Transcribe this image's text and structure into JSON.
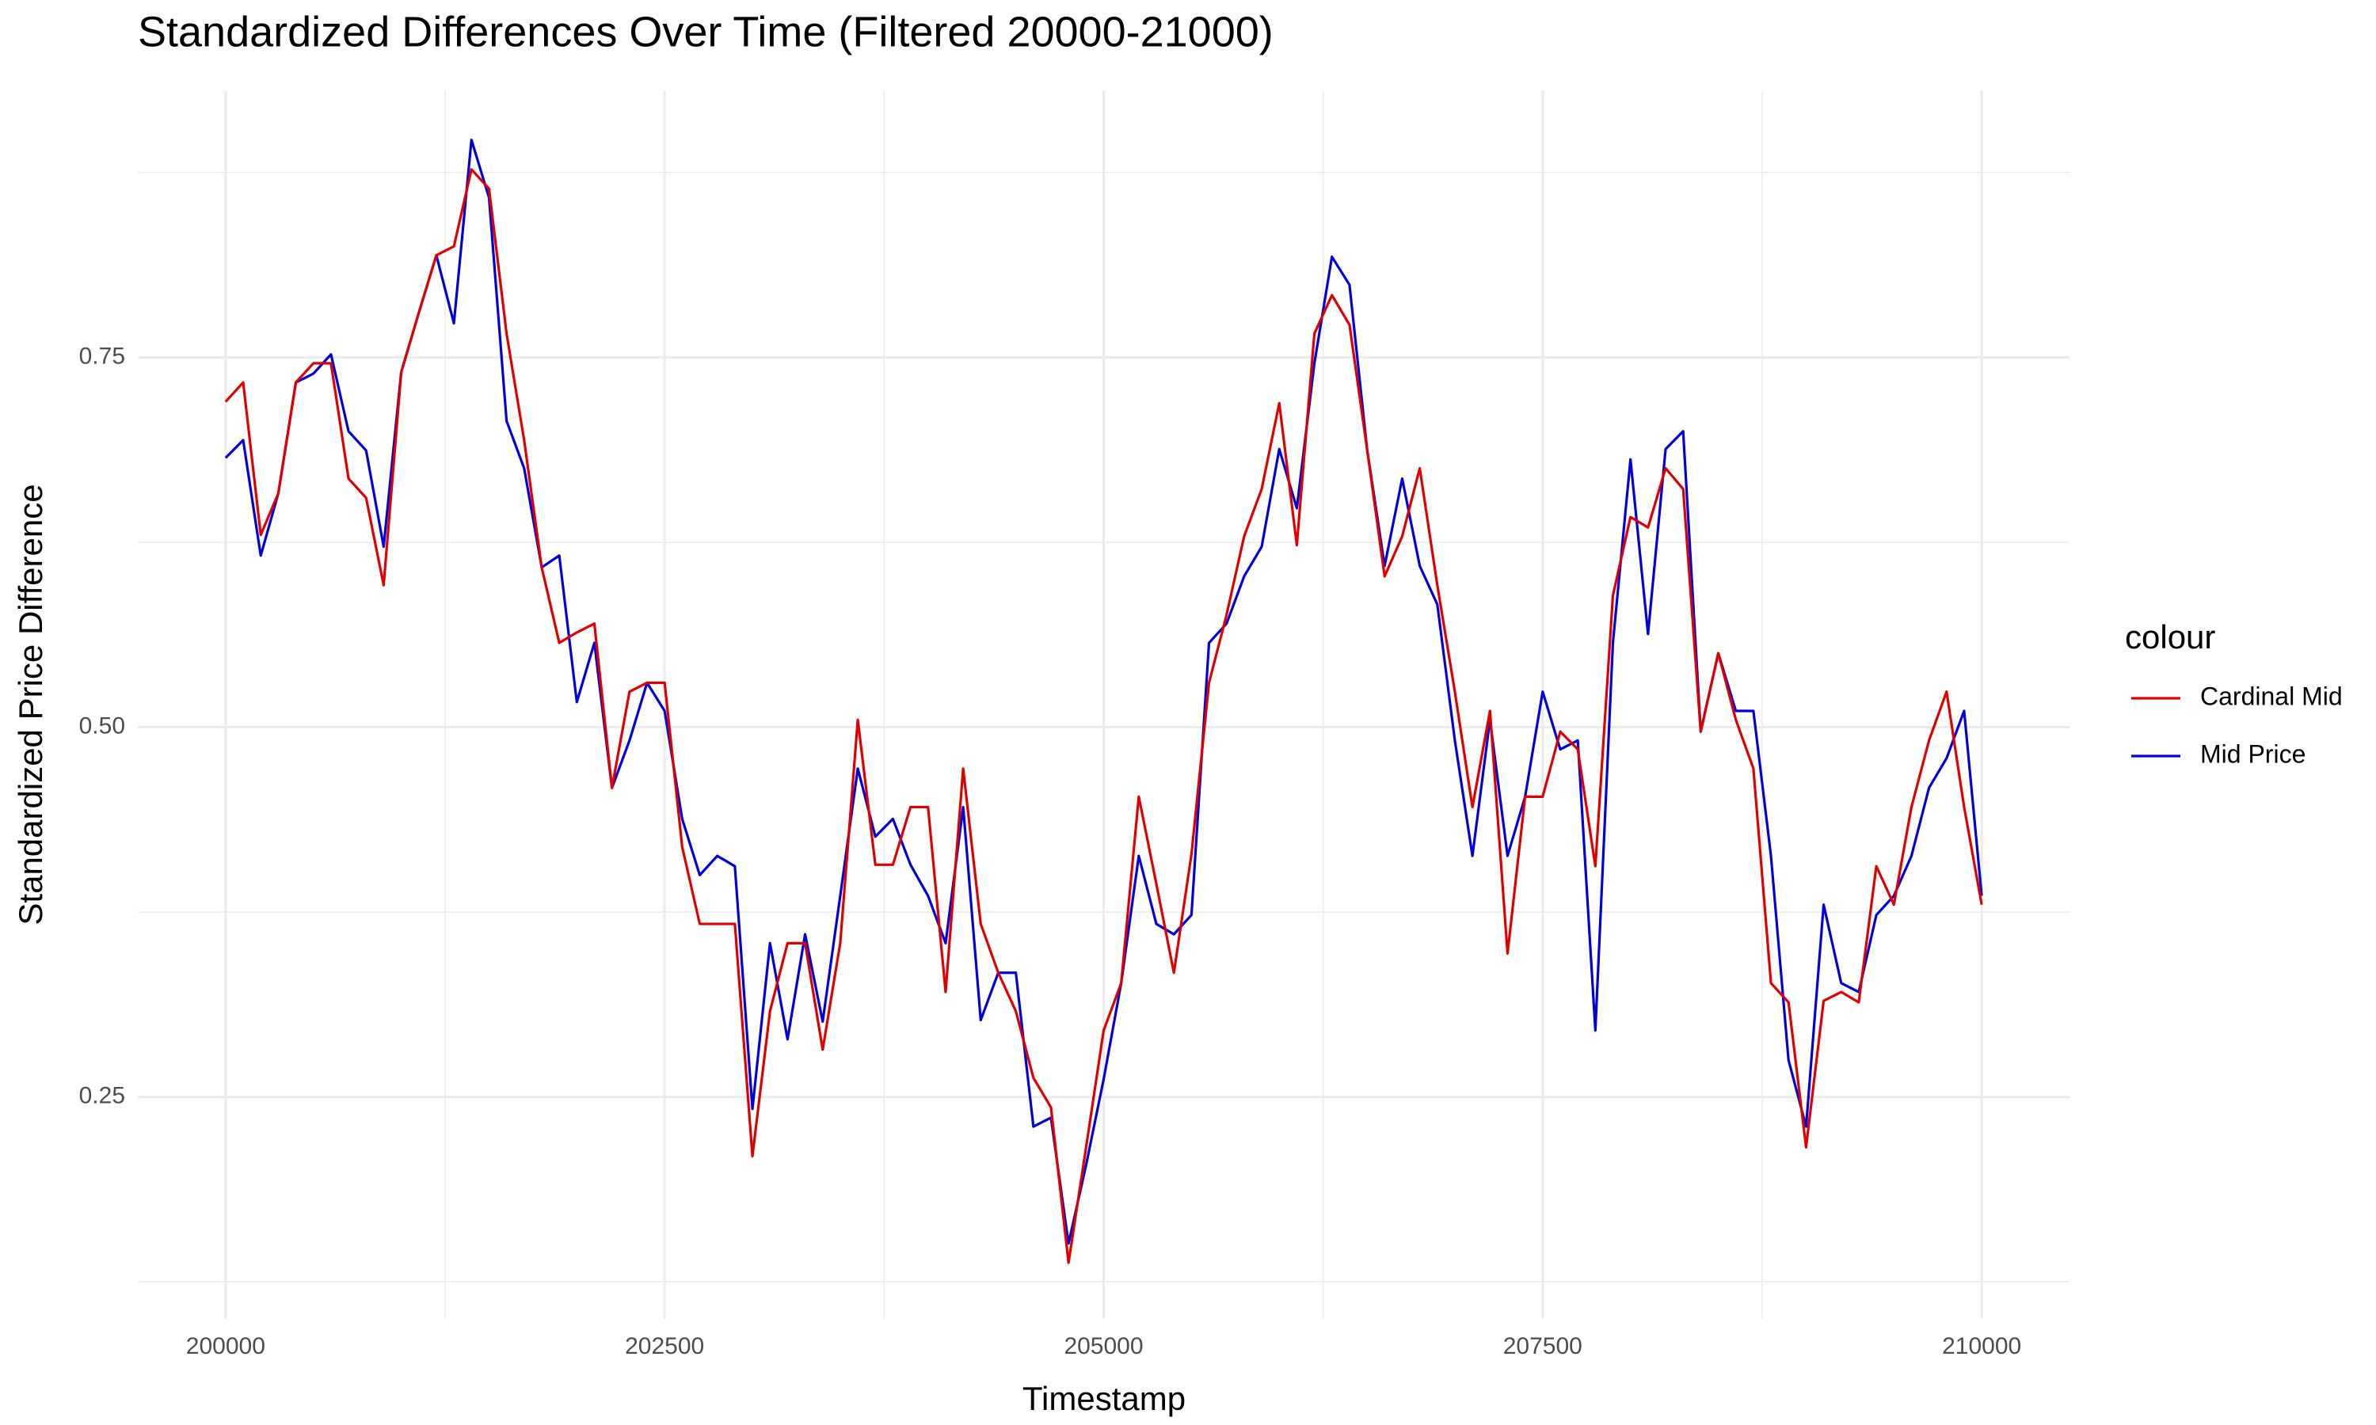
{
  "chart_data": {
    "type": "line",
    "title": "Standardized Differences Over Time (Filtered 20000-21000)",
    "x_label": "Timestamp",
    "y_label": "Standardized Price Difference",
    "legend_title": "colour",
    "legend_position": "right",
    "grid": true,
    "xlim": [
      199500,
      210500
    ],
    "ylim": [
      0.1,
      0.93
    ],
    "xticks": [
      200000,
      202500,
      205000,
      207500,
      210000
    ],
    "xminor": [
      201250,
      203750,
      206250,
      208750
    ],
    "yticks": [
      0.25,
      {
        "value": 0.5,
        "label": "0.50"
      },
      0.75
    ],
    "yminor": [
      0.125,
      0.375,
      0.625,
      0.875
    ],
    "x": [
      200000,
      200100,
      200200,
      200300,
      200400,
      200500,
      200600,
      200700,
      200800,
      200900,
      201000,
      201100,
      201200,
      201300,
      201400,
      201500,
      201600,
      201700,
      201800,
      201900,
      202000,
      202100,
      202200,
      202300,
      202400,
      202500,
      202600,
      202700,
      202800,
      202900,
      203000,
      203100,
      203200,
      203300,
      203400,
      203500,
      203600,
      203700,
      203800,
      203900,
      204000,
      204100,
      204200,
      204300,
      204400,
      204500,
      204600,
      204700,
      204800,
      204900,
      205000,
      205100,
      205200,
      205300,
      205400,
      205500,
      205600,
      205700,
      205800,
      205900,
      206000,
      206100,
      206200,
      206300,
      206400,
      206500,
      206600,
      206700,
      206800,
      206900,
      207000,
      207100,
      207200,
      207300,
      207400,
      207500,
      207600,
      207700,
      207800,
      207900,
      208000,
      208100,
      208200,
      208300,
      208400,
      208500,
      208600,
      208700,
      208800,
      208900,
      209000,
      209100,
      209200,
      209300,
      209400,
      209500,
      209600,
      209700,
      209800,
      209900,
      210000
    ],
    "series": [
      {
        "name": "Cardinal Mid",
        "color": "#e00000",
        "values": [
          0.72,
          0.733,
          0.63,
          0.658,
          0.733,
          0.746,
          0.746,
          0.668,
          0.655,
          0.596,
          0.74,
          0.78,
          0.819,
          0.825,
          0.877,
          0.864,
          0.766,
          0.694,
          0.608,
          0.557,
          0.564,
          0.57,
          0.459,
          0.524,
          0.53,
          0.53,
          0.419,
          0.367,
          0.367,
          0.367,
          0.21,
          0.308,
          0.354,
          0.354,
          0.282,
          0.354,
          0.505,
          0.407,
          0.407,
          0.446,
          0.446,
          0.321,
          0.472,
          0.367,
          0.334,
          0.308,
          0.263,
          0.243,
          0.138,
          0.216,
          0.295,
          0.327,
          0.453,
          0.394,
          0.334,
          0.414,
          0.53,
          0.576,
          0.629,
          0.661,
          0.719,
          0.623,
          0.766,
          0.792,
          0.772,
          0.688,
          0.602,
          0.629,
          0.675,
          0.596,
          0.524,
          0.446,
          0.511,
          0.347,
          0.453,
          0.453,
          0.497,
          0.485,
          0.406,
          0.589,
          0.642,
          0.635,
          0.675,
          0.661,
          0.497,
          0.55,
          0.505,
          0.472,
          0.327,
          0.314,
          0.216,
          0.315,
          0.321,
          0.314,
          0.406,
          0.38,
          0.446,
          0.491,
          0.524,
          0.446,
          0.38
        ]
      },
      {
        "name": "Mid Price",
        "color": "#0000dd",
        "values": [
          0.682,
          0.694,
          0.616,
          0.658,
          0.733,
          0.739,
          0.752,
          0.7,
          0.687,
          0.622,
          0.74,
          0.78,
          0.819,
          0.773,
          0.897,
          0.858,
          0.707,
          0.675,
          0.608,
          0.616,
          0.517,
          0.557,
          0.459,
          0.491,
          0.53,
          0.511,
          0.438,
          0.4,
          0.413,
          0.406,
          0.242,
          0.354,
          0.289,
          0.36,
          0.301,
          0.386,
          0.472,
          0.426,
          0.438,
          0.407,
          0.386,
          0.354,
          0.446,
          0.302,
          0.334,
          0.334,
          0.23,
          0.236,
          0.151,
          0.204,
          0.262,
          0.327,
          0.413,
          0.367,
          0.36,
          0.373,
          0.557,
          0.57,
          0.602,
          0.622,
          0.688,
          0.648,
          0.746,
          0.818,
          0.799,
          0.688,
          0.609,
          0.668,
          0.609,
          0.583,
          0.491,
          0.413,
          0.505,
          0.413,
          0.453,
          0.524,
          0.485,
          0.491,
          0.295,
          0.557,
          0.681,
          0.563,
          0.688,
          0.7,
          0.497,
          0.55,
          0.511,
          0.511,
          0.413,
          0.275,
          0.23,
          0.38,
          0.327,
          0.321,
          0.373,
          0.386,
          0.413,
          0.459,
          0.479,
          0.511,
          0.386
        ]
      }
    ]
  }
}
